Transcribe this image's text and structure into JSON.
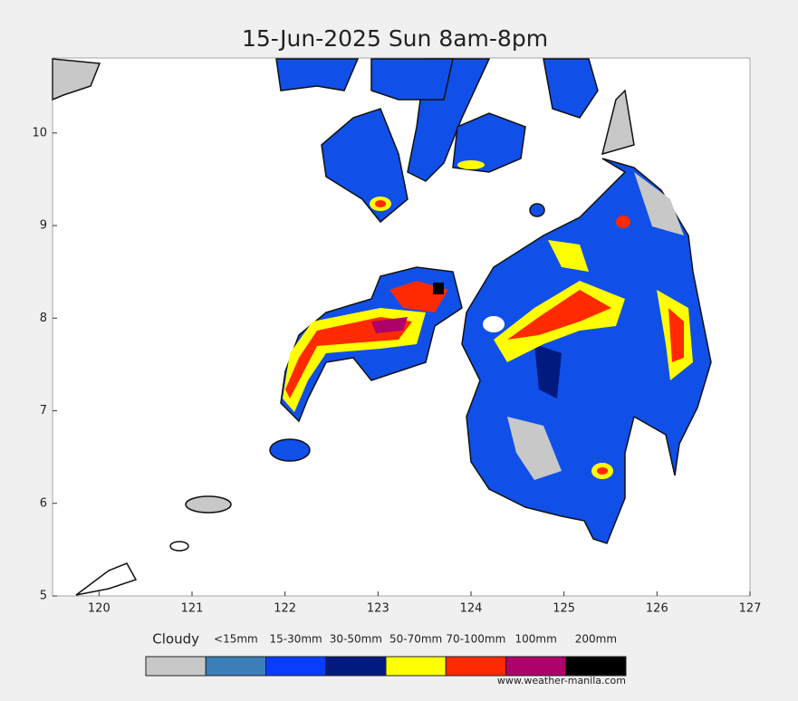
{
  "chart_data": {
    "type": "map",
    "title": "15-Jun-2025 Sun 8am-8pm",
    "xlim": [
      119.5,
      127
    ],
    "ylim": [
      5,
      10.81
    ],
    "xticks": [
      120,
      121,
      122,
      123,
      124,
      125,
      126,
      127
    ],
    "yticks": [
      5,
      6,
      7,
      8,
      9,
      10
    ],
    "legend": [
      {
        "label": "Cloudy",
        "color": "#c8c8c8"
      },
      {
        "label": "<15mm",
        "color": "#3a7fb8"
      },
      {
        "label": "15-30mm",
        "color": "#0a3cff"
      },
      {
        "label": "30-50mm",
        "color": "#001a80"
      },
      {
        "label": "50-70mm",
        "color": "#ffff00"
      },
      {
        "label": "70-100mm",
        "color": "#ff2a00"
      },
      {
        "label": "100mm",
        "color": "#b0006a"
      },
      {
        "label": "200mm",
        "color": "#000000"
      }
    ],
    "credit": "www.weather-manila.com"
  }
}
